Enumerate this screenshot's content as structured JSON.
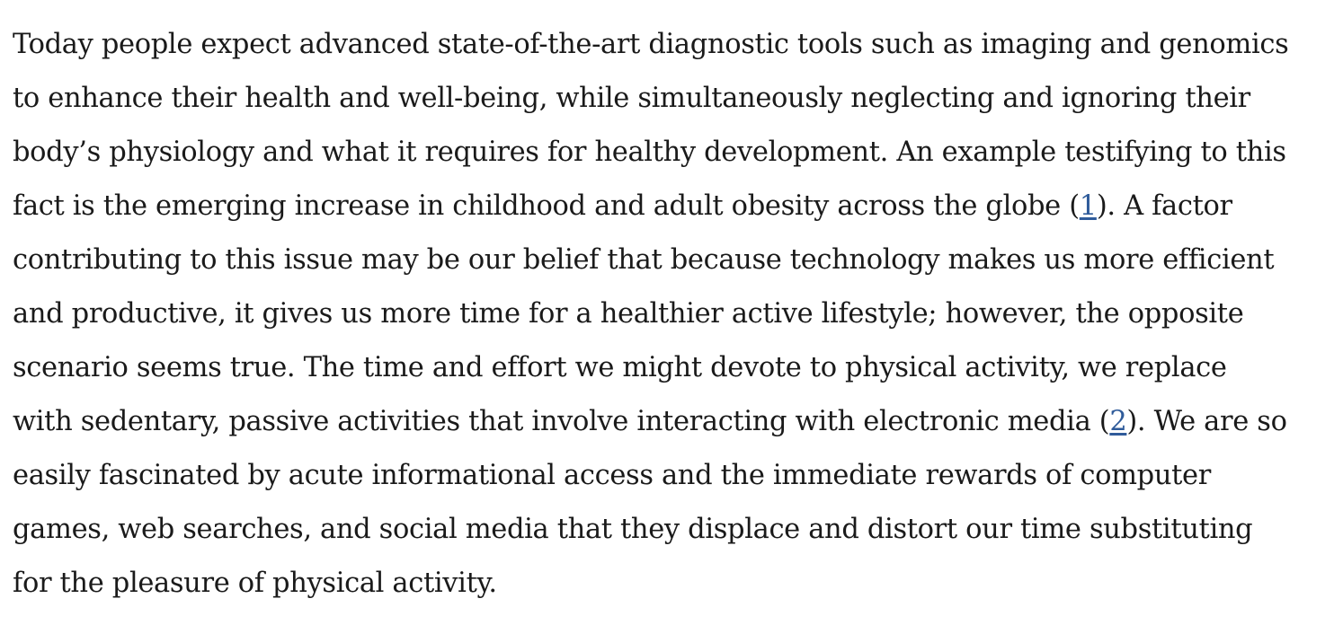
{
  "paragraph": {
    "lines": [
      [
        "Today people expect advanced state-of-the-art diagnostic tools such as imaging and genomics"
      ],
      [
        "to enhance their health and well-being, while simultaneously neglecting and ignoring their"
      ],
      [
        "body’s physiology and what it requires for healthy development. An example testifying to this"
      ],
      [
        "fact is the emerging increase in childhood and adult obesity across the globe (",
        "1",
        "). A factor"
      ],
      [
        "contributing to this issue may be our belief that because technology makes us more efficient"
      ],
      [
        "and productive, it gives us more time for a healthier active lifestyle; however, the opposite"
      ],
      [
        "scenario seems true. The time and effort we might devote to physical activity, we replace"
      ],
      [
        "with sedentary, passive activities that involve interacting with electronic media (",
        "2",
        "). We are so"
      ],
      [
        "easily fascinated by acute informational access and the immediate rewards of computer"
      ],
      [
        "games, web searches, and social media that they displace and distort our time substituting"
      ],
      [
        "for the pleasure of physical activity."
      ]
    ]
  },
  "colors": {
    "text": "#1a1a1a",
    "link": "#2f5b9a",
    "background": "#ffffff"
  }
}
